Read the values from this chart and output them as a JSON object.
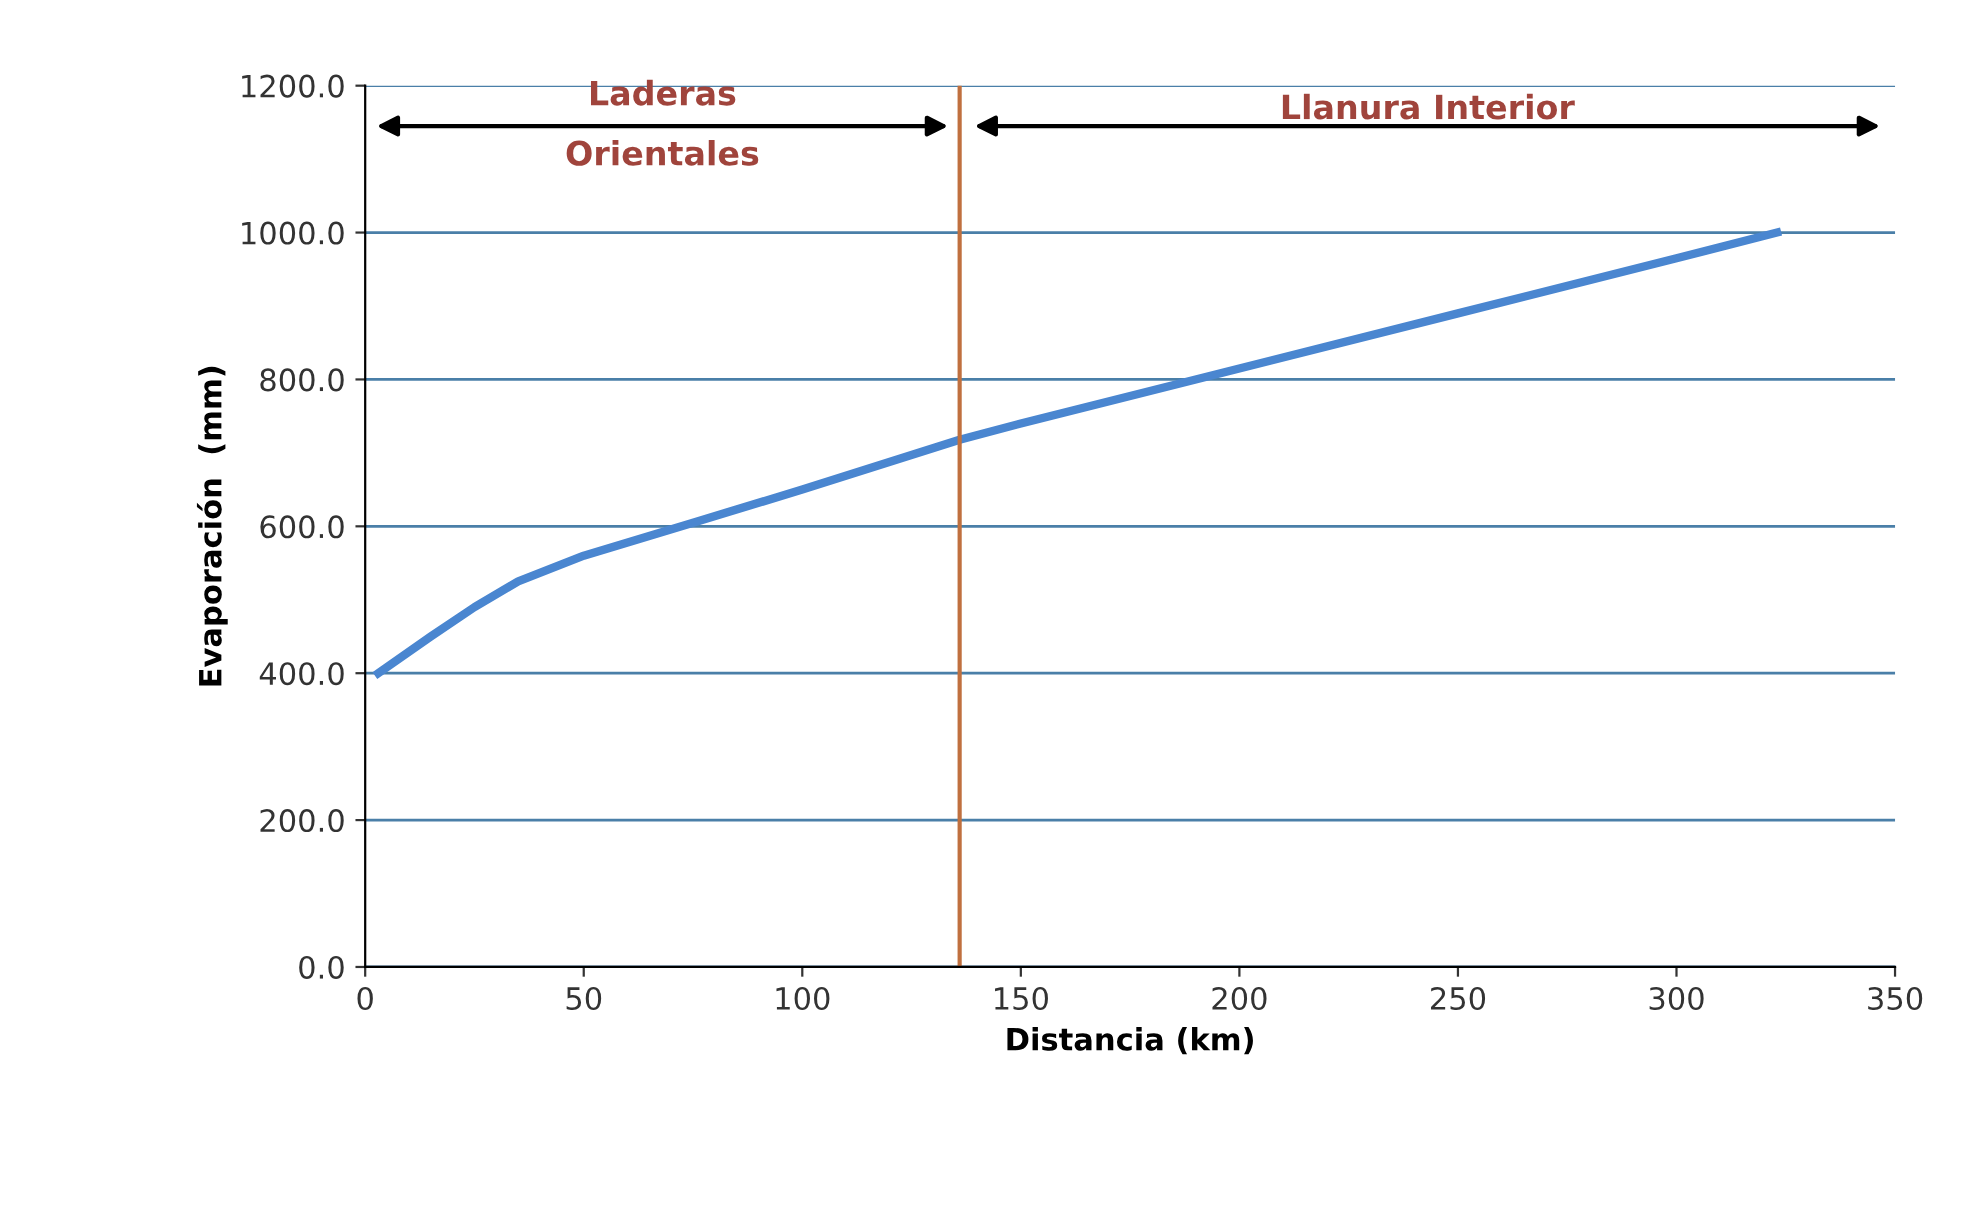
{
  "chart_data": {
    "type": "line",
    "xlabel": "Distancia (km)",
    "ylabel": "Evaporación  (mm)",
    "x": [
      3,
      15,
      25,
      35,
      50,
      75,
      100,
      136,
      150,
      190,
      250,
      300,
      323
    ],
    "series": [
      {
        "color": "#4a86d0",
        "values": [
          400,
          450,
          490,
          525,
          560,
          605,
          650,
          718,
          740,
          800,
          890,
          965,
          1000
        ]
      }
    ],
    "xlim": [
      0,
      350
    ],
    "xticks": [
      0,
      50,
      100,
      150,
      200,
      250,
      300,
      350
    ],
    "ylim": [
      0,
      1200
    ],
    "yticks": [
      {
        "value": 0,
        "label": "0.0"
      },
      {
        "value": 200,
        "label": "200.0"
      },
      {
        "value": 400,
        "label": "400.0"
      },
      {
        "value": 600,
        "label": "600.0"
      },
      {
        "value": 800,
        "label": "800.0"
      },
      {
        "value": 1000,
        "label": "1000.0"
      },
      {
        "value": 1200,
        "label": "1200.0"
      }
    ],
    "grid": "y",
    "marker": "none",
    "line_style": "solid",
    "legend": false,
    "ref_lines": [
      {
        "axis": "x",
        "value": 136,
        "color": "#c0703f",
        "line_style": "solid"
      }
    ],
    "annotations": [
      "Laderas\nOrientales",
      "Llanura Interior"
    ]
  }
}
